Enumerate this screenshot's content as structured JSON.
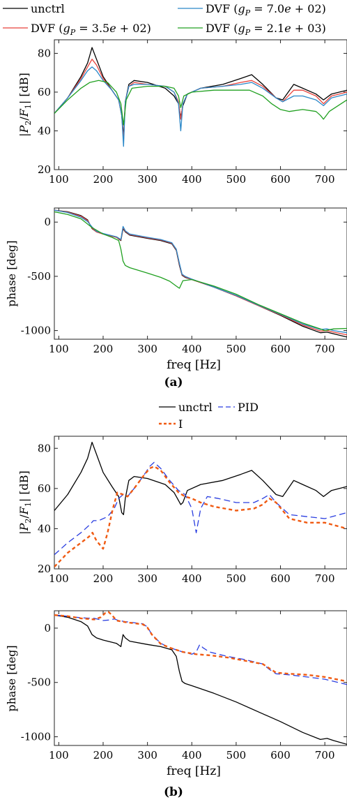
{
  "chart_data": [
    {
      "panel": "a",
      "type": "line",
      "ylabel": "|P2/F1| [dB]",
      "xlabel": "",
      "xlim": [
        90,
        750
      ],
      "ylim": [
        20,
        87
      ],
      "xticks": [
        100,
        200,
        300,
        400,
        500,
        600,
        700
      ],
      "yticks": [
        20,
        40,
        60,
        80
      ],
      "legend": "top (outside, two columns)",
      "series": [
        {
          "name": "unctrl",
          "color": "#000000",
          "dash": "solid",
          "x": [
            90,
            120,
            150,
            165,
            175,
            185,
            200,
            220,
            235,
            242,
            246,
            250,
            258,
            270,
            300,
            340,
            360,
            370,
            375,
            380,
            390,
            420,
            470,
            510,
            535,
            560,
            590,
            605,
            630,
            650,
            680,
            697,
            715,
            750
          ],
          "y": [
            49,
            57,
            68,
            75,
            83,
            77,
            68,
            61,
            56,
            48,
            37,
            55,
            64,
            66,
            65,
            62,
            58,
            54,
            47,
            53,
            59,
            62,
            64,
            67,
            69,
            64,
            57,
            56,
            64,
            62,
            59,
            56,
            59,
            61
          ]
        },
        {
          "name": "DVF (gP = 3.5e+02)",
          "color": "#e8413a",
          "dash": "solid",
          "x": [
            90,
            120,
            150,
            165,
            175,
            185,
            200,
            220,
            235,
            242,
            246,
            250,
            258,
            270,
            300,
            340,
            360,
            370,
            375,
            380,
            390,
            420,
            470,
            510,
            535,
            560,
            590,
            605,
            630,
            650,
            680,
            697,
            715,
            750
          ],
          "y": [
            49,
            57,
            67,
            73,
            77,
            74,
            67,
            61,
            56,
            48,
            35,
            55,
            63,
            65,
            64,
            63,
            60,
            55,
            46,
            54,
            59,
            62,
            63,
            65,
            66,
            63,
            57,
            55,
            61,
            61,
            58,
            54,
            58,
            60
          ]
        },
        {
          "name": "DVF (gP = 7.0e+02)",
          "color": "#2a87c8",
          "dash": "solid",
          "x": [
            90,
            120,
            150,
            165,
            175,
            185,
            200,
            220,
            235,
            242,
            246,
            250,
            258,
            270,
            300,
            340,
            360,
            370,
            375,
            380,
            390,
            420,
            470,
            510,
            535,
            560,
            590,
            605,
            630,
            650,
            680,
            697,
            715,
            750
          ],
          "y": [
            49,
            57,
            66,
            71,
            73,
            71,
            66,
            61,
            56,
            48,
            32,
            55,
            63,
            64,
            64,
            63,
            60,
            54,
            40,
            54,
            59,
            62,
            63,
            64,
            65,
            62,
            57,
            55,
            58,
            58,
            56,
            53,
            57,
            59
          ]
        },
        {
          "name": "DVF (gP = 2.1e+03)",
          "color": "#20a020",
          "dash": "solid",
          "x": [
            90,
            120,
            150,
            170,
            190,
            210,
            230,
            240,
            246,
            252,
            265,
            300,
            340,
            360,
            370,
            375,
            382,
            400,
            450,
            500,
            530,
            560,
            580,
            600,
            620,
            650,
            680,
            690,
            697,
            710,
            750
          ],
          "y": [
            49,
            56,
            62,
            65,
            66,
            65,
            60,
            54,
            43,
            56,
            62,
            63,
            63,
            62,
            58,
            52,
            58,
            60,
            61,
            61,
            61,
            58,
            54,
            51,
            50,
            51,
            50,
            48,
            46,
            50,
            56
          ]
        }
      ]
    },
    {
      "panel": "a",
      "type": "line",
      "ylabel": "phase [deg]",
      "xlabel": "freq [Hz]",
      "xlim": [
        90,
        750
      ],
      "ylim": [
        -1080,
        130
      ],
      "xticks": [
        100,
        200,
        300,
        400,
        500,
        600,
        700
      ],
      "yticks": [
        -1000,
        -500,
        0
      ],
      "series": [
        {
          "name": "unctrl",
          "color": "#000000",
          "dash": "solid",
          "x": [
            90,
            120,
            150,
            165,
            175,
            185,
            200,
            230,
            240,
            245,
            250,
            260,
            300,
            330,
            355,
            365,
            372,
            378,
            385,
            400,
            450,
            500,
            550,
            600,
            650,
            690,
            705,
            720,
            750
          ],
          "y": [
            110,
            95,
            60,
            20,
            -60,
            -90,
            -110,
            -140,
            -170,
            -60,
            -90,
            -120,
            -150,
            -170,
            -200,
            -260,
            -400,
            -490,
            -510,
            -530,
            -600,
            -680,
            -770,
            -860,
            -960,
            -1020,
            -1015,
            -1030,
            -1060
          ]
        },
        {
          "name": "DVF (gP = 3.5e+02)",
          "color": "#e8413a",
          "dash": "solid",
          "x": [
            90,
            120,
            150,
            165,
            175,
            185,
            200,
            230,
            240,
            245,
            250,
            260,
            300,
            330,
            355,
            365,
            372,
            378,
            385,
            400,
            450,
            500,
            550,
            600,
            650,
            690,
            705,
            720,
            750
          ],
          "y": [
            110,
            92,
            55,
            15,
            -55,
            -90,
            -110,
            -140,
            -165,
            -50,
            -85,
            -115,
            -145,
            -165,
            -195,
            -255,
            -390,
            -485,
            -505,
            -530,
            -600,
            -680,
            -770,
            -855,
            -950,
            -1005,
            -1000,
            -1015,
            -1040
          ]
        },
        {
          "name": "DVF (gP = 7.0e+02)",
          "color": "#2a87c8",
          "dash": "solid",
          "x": [
            90,
            120,
            150,
            165,
            175,
            185,
            200,
            230,
            240,
            245,
            250,
            260,
            300,
            330,
            355,
            365,
            372,
            378,
            385,
            400,
            450,
            500,
            550,
            600,
            650,
            690,
            705,
            720,
            750
          ],
          "y": [
            110,
            88,
            45,
            5,
            -45,
            -85,
            -105,
            -135,
            -160,
            -40,
            -80,
            -110,
            -140,
            -160,
            -190,
            -250,
            -380,
            -480,
            -500,
            -525,
            -600,
            -675,
            -765,
            -850,
            -940,
            -990,
            -985,
            -1000,
            -1020
          ]
        },
        {
          "name": "DVF (gP = 2.1e+03)",
          "color": "#20a020",
          "dash": "solid",
          "x": [
            90,
            120,
            150,
            175,
            200,
            220,
            235,
            240,
            245,
            250,
            260,
            300,
            330,
            350,
            365,
            372,
            380,
            400,
            450,
            500,
            550,
            600,
            650,
            690,
            700,
            720,
            750
          ],
          "y": [
            95,
            70,
            30,
            -50,
            -110,
            -140,
            -170,
            -250,
            -360,
            -400,
            -420,
            -470,
            -510,
            -545,
            -590,
            -610,
            -540,
            -530,
            -590,
            -665,
            -760,
            -845,
            -930,
            -985,
            -1000,
            -985,
            -980
          ]
        }
      ]
    },
    {
      "panel": "b",
      "type": "line",
      "ylabel": "|P2/F1| [dB]",
      "xlabel": "",
      "xlim": [
        90,
        750
      ],
      "ylim": [
        20,
        86
      ],
      "xticks": [
        100,
        200,
        300,
        400,
        500,
        600,
        700
      ],
      "yticks": [
        20,
        40,
        60,
        80
      ],
      "legend": "top (outside, two columns)",
      "series": [
        {
          "name": "unctrl",
          "color": "#000000",
          "dash": "solid",
          "x": [
            90,
            120,
            150,
            165,
            175,
            185,
            200,
            220,
            235,
            242,
            246,
            250,
            258,
            270,
            300,
            340,
            360,
            370,
            375,
            380,
            390,
            420,
            470,
            510,
            535,
            560,
            590,
            605,
            630,
            650,
            680,
            697,
            715,
            750
          ],
          "y": [
            49,
            57,
            68,
            75,
            83,
            77,
            68,
            61,
            56,
            48,
            47,
            55,
            64,
            66,
            65,
            62,
            58,
            54,
            52,
            53,
            59,
            62,
            64,
            67,
            69,
            64,
            57,
            56,
            64,
            62,
            59,
            56,
            59,
            61
          ]
        },
        {
          "name": "I",
          "color": "#2a3ee0",
          "dash": "long",
          "x": [
            90,
            120,
            150,
            170,
            178,
            190,
            210,
            225,
            235,
            245,
            255,
            270,
            290,
            305,
            315,
            330,
            350,
            370,
            385,
            400,
            410,
            420,
            435,
            460,
            500,
            540,
            560,
            575,
            590,
            620,
            660,
            700,
            750
          ],
          "y": [
            27,
            33,
            38,
            42,
            44,
            44,
            46,
            50,
            55,
            57,
            56,
            60,
            66,
            71,
            73,
            70,
            64,
            59,
            57,
            50,
            38,
            50,
            56,
            55,
            53,
            53,
            55,
            57,
            53,
            47,
            46,
            45,
            48
          ]
        },
        {
          "name": "PID",
          "color": "#f05a12",
          "dash": "short",
          "x": [
            90,
            120,
            150,
            168,
            176,
            185,
            200,
            210,
            222,
            232,
            245,
            255,
            270,
            290,
            305,
            315,
            330,
            350,
            370,
            385,
            400,
            420,
            450,
            500,
            540,
            560,
            575,
            590,
            620,
            660,
            700,
            750
          ],
          "y": [
            21,
            28,
            33,
            36,
            38,
            34,
            30,
            38,
            50,
            58,
            57,
            56,
            60,
            66,
            70,
            71,
            69,
            63,
            58,
            56,
            55,
            53,
            51,
            49,
            50,
            52,
            55,
            53,
            45,
            43,
            43,
            40
          ]
        }
      ]
    },
    {
      "panel": "b",
      "type": "line",
      "ylabel": "phase [deg]",
      "xlabel": "freq [Hz]",
      "xlim": [
        90,
        750
      ],
      "ylim": [
        -1080,
        160
      ],
      "xticks": [
        100,
        200,
        300,
        400,
        500,
        600,
        700
      ],
      "yticks": [
        -1000,
        -500,
        0
      ],
      "series": [
        {
          "name": "unctrl",
          "color": "#000000",
          "dash": "solid",
          "x": [
            90,
            120,
            150,
            165,
            175,
            185,
            200,
            230,
            240,
            245,
            250,
            260,
            300,
            330,
            355,
            365,
            372,
            378,
            385,
            400,
            450,
            500,
            550,
            600,
            650,
            690,
            705,
            720,
            750
          ],
          "y": [
            120,
            100,
            60,
            20,
            -60,
            -90,
            -110,
            -140,
            -170,
            -60,
            -90,
            -120,
            -150,
            -170,
            -200,
            -260,
            -400,
            -490,
            -510,
            -530,
            -600,
            -680,
            -770,
            -860,
            -960,
            -1025,
            -1015,
            -1035,
            -1070
          ]
        },
        {
          "name": "I",
          "color": "#2a3ee0",
          "dash": "long",
          "x": [
            90,
            120,
            150,
            180,
            200,
            215,
            225,
            235,
            250,
            270,
            290,
            300,
            310,
            330,
            350,
            380,
            400,
            410,
            418,
            425,
            440,
            480,
            520,
            560,
            575,
            590,
            620,
            660,
            700,
            750
          ],
          "y": [
            120,
            110,
            95,
            90,
            70,
            75,
            85,
            70,
            60,
            50,
            40,
            10,
            -60,
            -140,
            -180,
            -220,
            -240,
            -220,
            -150,
            -180,
            -220,
            -260,
            -290,
            -330,
            -380,
            -420,
            -430,
            -450,
            -470,
            -520
          ]
        },
        {
          "name": "PID",
          "color": "#f05a12",
          "dash": "short",
          "x": [
            90,
            120,
            150,
            180,
            195,
            205,
            212,
            220,
            230,
            250,
            270,
            290,
            300,
            310,
            330,
            350,
            380,
            410,
            440,
            480,
            520,
            560,
            575,
            590,
            620,
            660,
            700,
            750
          ],
          "y": [
            120,
            110,
            90,
            80,
            100,
            140,
            150,
            120,
            70,
            55,
            45,
            35,
            5,
            -60,
            -145,
            -180,
            -220,
            -240,
            -250,
            -270,
            -300,
            -330,
            -370,
            -410,
            -420,
            -430,
            -450,
            -490
          ]
        }
      ]
    }
  ],
  "legends": {
    "a": [
      "unctrl",
      "DVF (g_P = 7.0e+02)",
      "DVF (g_P = 3.5e+02)",
      "DVF (g_P = 2.1e+03)"
    ],
    "b": [
      "unctrl",
      "I",
      "PID"
    ]
  },
  "captions": {
    "a": "(a)",
    "b": "(b)"
  },
  "colors": {
    "unctrl": "#000000",
    "dvf350": "#e8413a",
    "dvf700": "#2a87c8",
    "dvf2100": "#20a020",
    "i": "#2a3ee0",
    "pid": "#f05a12"
  }
}
